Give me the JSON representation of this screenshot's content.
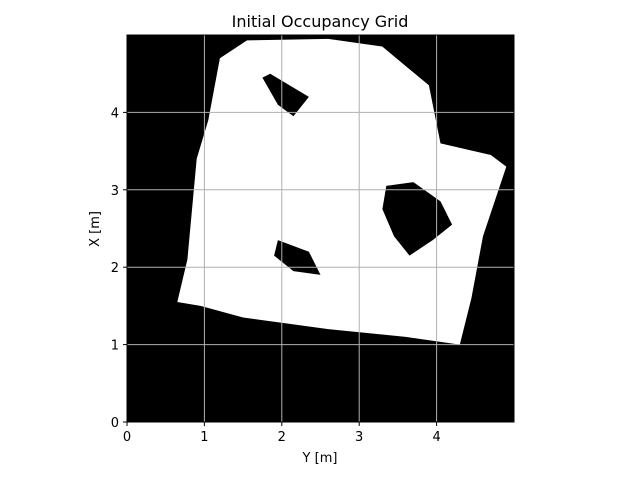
{
  "chart_data": {
    "type": "heatmap",
    "title": "Initial Occupancy Grid",
    "xlabel": "Y [m]",
    "ylabel": "X [m]",
    "xlim": [
      0,
      5
    ],
    "ylim": [
      0,
      5
    ],
    "xticks": [
      0,
      1,
      2,
      3,
      4
    ],
    "yticks": [
      0,
      1,
      2,
      3,
      4
    ],
    "grid": true,
    "colormap": {
      "occupied": "#000000",
      "free": "#ffffff"
    },
    "free_regions": [
      {
        "name": "room",
        "polygon": [
          [
            0.65,
            1.55
          ],
          [
            0.78,
            2.1
          ],
          [
            0.9,
            3.4
          ],
          [
            1.05,
            3.9
          ],
          [
            1.2,
            4.7
          ],
          [
            1.55,
            4.93
          ],
          [
            2.6,
            4.95
          ],
          [
            3.3,
            4.85
          ],
          [
            3.6,
            4.6
          ],
          [
            3.9,
            4.35
          ],
          [
            4.05,
            3.6
          ],
          [
            4.7,
            3.45
          ],
          [
            4.9,
            3.3
          ],
          [
            4.6,
            2.4
          ],
          [
            4.45,
            1.6
          ],
          [
            4.3,
            1.0
          ],
          [
            3.6,
            1.1
          ],
          [
            2.6,
            1.2
          ],
          [
            1.5,
            1.35
          ],
          [
            0.95,
            1.5
          ]
        ]
      }
    ],
    "obstacles": [
      {
        "name": "obstacle-top",
        "polygon": [
          [
            1.85,
            4.5
          ],
          [
            2.35,
            4.2
          ],
          [
            2.15,
            3.95
          ],
          [
            1.95,
            4.1
          ],
          [
            1.75,
            4.45
          ]
        ]
      },
      {
        "name": "obstacle-right",
        "polygon": [
          [
            3.35,
            3.05
          ],
          [
            3.7,
            3.1
          ],
          [
            4.05,
            2.85
          ],
          [
            4.2,
            2.55
          ],
          [
            3.95,
            2.35
          ],
          [
            3.65,
            2.15
          ],
          [
            3.45,
            2.4
          ],
          [
            3.3,
            2.75
          ]
        ]
      },
      {
        "name": "obstacle-center",
        "polygon": [
          [
            1.95,
            2.35
          ],
          [
            2.35,
            2.2
          ],
          [
            2.5,
            1.9
          ],
          [
            2.15,
            1.95
          ],
          [
            1.9,
            2.15
          ]
        ]
      }
    ]
  }
}
